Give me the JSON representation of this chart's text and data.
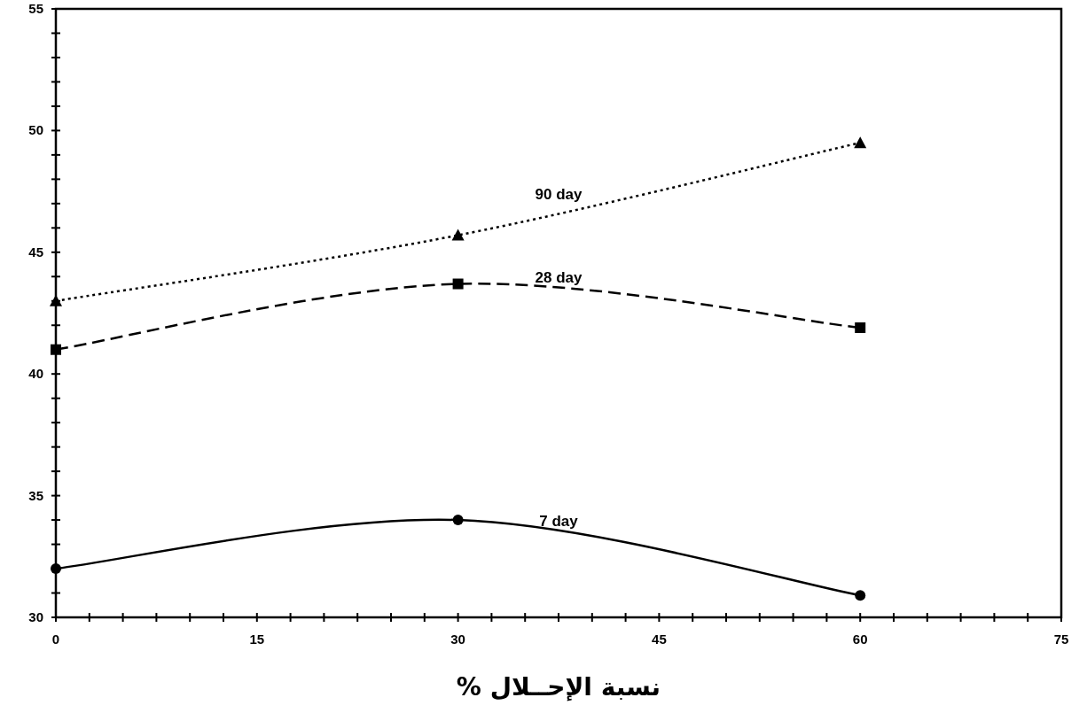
{
  "chart_data": {
    "type": "line",
    "xlabel": "نسبة الإحــلال %",
    "x": [
      0,
      30,
      60
    ],
    "series": [
      {
        "name": "90 day",
        "color": "#000000",
        "values": [
          43,
          45.7,
          49.5
        ],
        "marker": "triangle",
        "line_style": "dotted"
      },
      {
        "name": "28 day",
        "color": "#000000",
        "values": [
          41,
          43.7,
          41.9
        ],
        "marker": "square",
        "line_style": "dashed"
      },
      {
        "name": "7 day",
        "color": "#000000",
        "values": [
          32,
          34,
          30.9
        ],
        "marker": "circle",
        "line_style": "solid"
      }
    ],
    "xlim": [
      0,
      75
    ],
    "xticks": [
      0,
      {
        "value": 2.5,
        "label": null
      },
      {
        "value": 5,
        "label": null
      },
      {
        "value": 7.5,
        "label": null
      },
      {
        "value": 10,
        "label": null
      },
      {
        "value": 12.5,
        "label": null
      },
      15,
      {
        "value": 17.5,
        "label": null
      },
      {
        "value": 20,
        "label": null
      },
      {
        "value": 22.5,
        "label": null
      },
      {
        "value": 25,
        "label": null
      },
      {
        "value": 27.5,
        "label": null
      },
      30,
      {
        "value": 32.5,
        "label": null
      },
      {
        "value": 35,
        "label": null
      },
      {
        "value": 37.5,
        "label": null
      },
      {
        "value": 40,
        "label": null
      },
      {
        "value": 42.5,
        "label": null
      },
      45,
      {
        "value": 47.5,
        "label": null
      },
      {
        "value": 50,
        "label": null
      },
      {
        "value": 52.5,
        "label": null
      },
      {
        "value": 55,
        "label": null
      },
      {
        "value": 57.5,
        "label": null
      },
      60,
      {
        "value": 62.5,
        "label": null
      },
      {
        "value": 65,
        "label": null
      },
      {
        "value": 67.5,
        "label": null
      },
      {
        "value": 70,
        "label": null
      },
      {
        "value": 72.5,
        "label": null
      },
      75
    ],
    "ylim": [
      30,
      55
    ],
    "yticks": [
      30,
      {
        "value": 31,
        "label": null
      },
      {
        "value": 32,
        "label": null
      },
      {
        "value": 33,
        "label": null
      },
      {
        "value": 34,
        "label": null
      },
      35,
      {
        "value": 36,
        "label": null
      },
      {
        "value": 37,
        "label": null
      },
      {
        "value": 38,
        "label": null
      },
      {
        "value": 39,
        "label": null
      },
      40,
      {
        "value": 41,
        "label": null
      },
      {
        "value": 42,
        "label": null
      },
      {
        "value": 43,
        "label": null
      },
      {
        "value": 44,
        "label": null
      },
      45,
      {
        "value": 46,
        "label": null
      },
      {
        "value": 47,
        "label": null
      },
      {
        "value": 48,
        "label": null
      },
      {
        "value": 49,
        "label": null
      },
      50,
      {
        "value": 51,
        "label": null
      },
      {
        "value": 52,
        "label": null
      },
      {
        "value": 53,
        "label": null
      },
      {
        "value": 54,
        "label": null
      },
      55
    ],
    "grid": false
  }
}
